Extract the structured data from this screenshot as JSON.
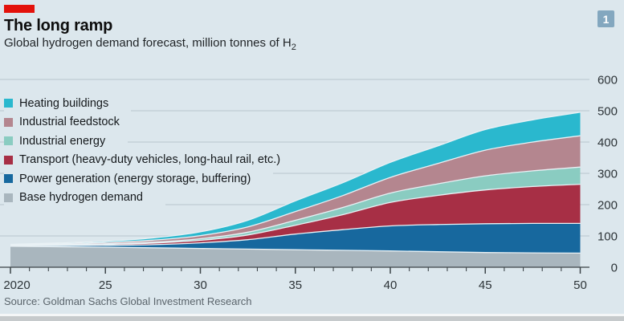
{
  "header": {
    "title": "The long ramp",
    "subtitle_main": "Global hydrogen demand forecast, million tonnes of H",
    "subtitle_subscript": "2",
    "figure_badge": "1"
  },
  "source_line": "Source: Goldman Sachs Global Investment Research",
  "colors": {
    "background": "#dce7ed",
    "accent_red": "#e3120b",
    "badge_blue": "#83a7bf",
    "gridline": "#bfccd4",
    "axis": "#3d4549",
    "band_separator": "#e9f1f5",
    "muted_text": "#5a646b"
  },
  "chart_data": {
    "type": "area",
    "stacked": true,
    "title": "The long ramp",
    "subtitle": "Global hydrogen demand forecast, million tonnes of H2",
    "grid": true,
    "legend_position": "top-left-overlay",
    "x_range": [
      2020,
      2050
    ],
    "ylim": [
      0,
      600
    ],
    "x": [
      2020,
      2022.5,
      2025,
      2027.5,
      2030,
      2032.5,
      2035,
      2037.5,
      2040,
      2042.5,
      2045,
      2047.5,
      2050
    ],
    "x_axis": {
      "tick_years": [
        2020,
        2025,
        2030,
        2035,
        2040,
        2045,
        2050
      ],
      "tick_labels": [
        "2020",
        "25",
        "30",
        "35",
        "40",
        "45",
        "50"
      ],
      "minor_ticks_every_year": true
    },
    "y_axis": {
      "ticks": [
        0,
        100,
        200,
        300,
        400,
        500,
        600
      ],
      "label_side": "right"
    },
    "series": [
      {
        "key": "base-hydrogen-demand",
        "name": "Base hydrogen demand",
        "color": "#a9b6be",
        "values": [
          67,
          65.5,
          64,
          62,
          60,
          58,
          56,
          54,
          52,
          49.5,
          47,
          46,
          45
        ]
      },
      {
        "key": "power-generation",
        "name": "Power generation (energy storage, buffering)",
        "color": "#17689e",
        "values": [
          2,
          3.5,
          6,
          10,
          18,
          30,
          50,
          66,
          80,
          87,
          92,
          94,
          95
        ]
      },
      {
        "key": "transport",
        "name": "Transport (heavy-duty vehicles, long-haul rail, etc.)",
        "color": "#a72f45",
        "values": [
          1,
          2,
          3,
          5,
          8,
          15,
          28,
          48,
          75,
          93,
          108,
          118,
          125
        ]
      },
      {
        "key": "industrial-energy",
        "name": "Industrial energy",
        "color": "#8accc1",
        "values": [
          1,
          1.5,
          2,
          3,
          5,
          9,
          16,
          23,
          30,
          37,
          45,
          50,
          55
        ]
      },
      {
        "key": "industrial-feedstock",
        "name": "Industrial feedstock",
        "color": "#b4868f",
        "values": [
          1,
          2.5,
          4,
          6.5,
          10,
          17,
          28,
          38,
          50,
          65,
          82,
          92,
          100
        ]
      },
      {
        "key": "heating-buildings",
        "name": "Heating buildings",
        "color": "#2ab8ce",
        "values": [
          1,
          2.5,
          4,
          7,
          12,
          21,
          34,
          41,
          48,
          56,
          66,
          71,
          75
        ]
      }
    ]
  }
}
